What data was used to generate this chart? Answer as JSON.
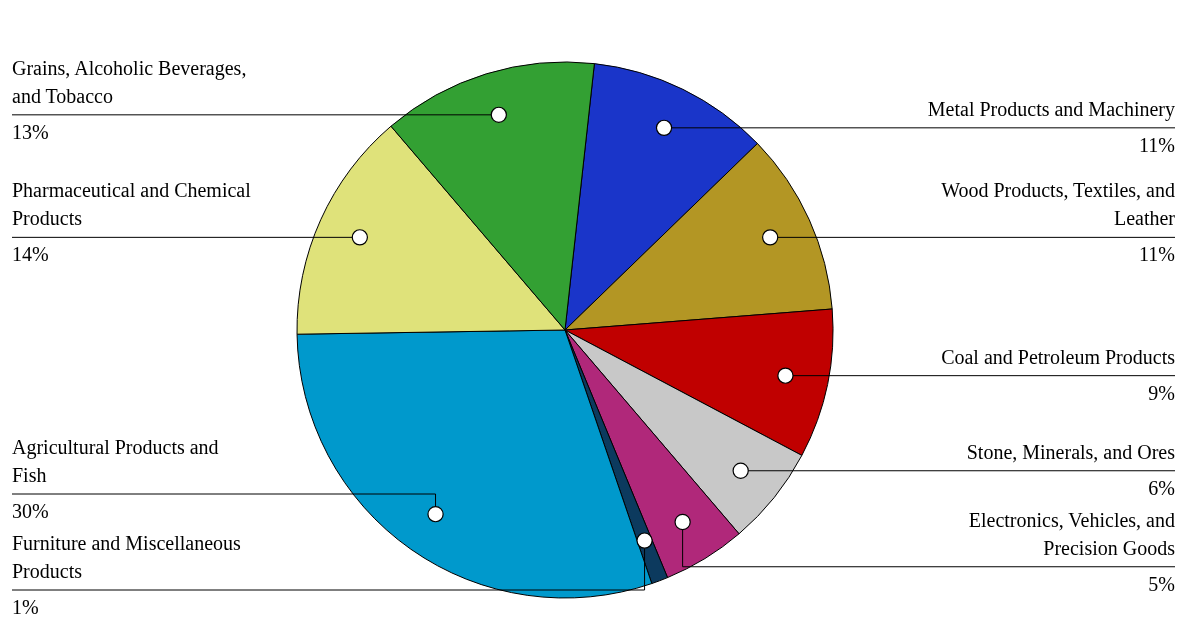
{
  "chart_data": {
    "type": "pie",
    "categories": [
      "Metal Products and Machinery",
      "Wood Products, Textiles, and Leather",
      "Coal and Petroleum Products",
      "Stone, Minerals, and Ores",
      "Electronics, Vehicles, and Precision Goods",
      "Furniture and Miscellaneous Products",
      "Agricultural Products and Fish",
      "Pharmaceutical and Chemical Products",
      "Grains, Alcoholic Beverages, and Tobacco"
    ],
    "values": [
      11,
      11,
      9,
      6,
      5,
      1,
      30,
      14,
      13
    ],
    "value_labels": [
      "11%",
      "11%",
      "9%",
      "6%",
      "5%",
      "1%",
      "30%",
      "14%",
      "13%"
    ],
    "colors": [
      "#1a35c9",
      "#b39624",
      "#c00000",
      "#c8c8c8",
      "#b0287a",
      "#0c3a5e",
      "#0099cc",
      "#dfe27a",
      "#33a033"
    ]
  }
}
